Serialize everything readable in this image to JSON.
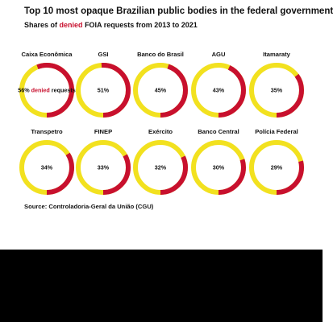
{
  "header": {
    "title": "Top 10 most opaque Brazilian public bodies in the federal government",
    "subtitle_pre": "Shares of",
    "subtitle_accent": "denied",
    "subtitle_post": "FOIA requests from 2013 to 2021"
  },
  "footer": {
    "source": "Source: Controladoria-Geral da União (CGU)"
  },
  "colors": {
    "denied": "#c8102e",
    "other": "#f2e11f"
  },
  "chart_data": {
    "type": "donut-grid",
    "annotation_first": {
      "mid": "denied",
      "post": "requests"
    },
    "items": [
      {
        "name": "Caixa Econômica",
        "value": 56,
        "label": "56%"
      },
      {
        "name": "GSI",
        "value": 51,
        "label": "51%"
      },
      {
        "name": "Banco do Brasil",
        "value": 45,
        "label": "45%"
      },
      {
        "name": "AGU",
        "value": 43,
        "label": "43%"
      },
      {
        "name": "Itamaraty",
        "value": 35,
        "label": "35%"
      },
      {
        "name": "Transpetro",
        "value": 34,
        "label": "34%"
      },
      {
        "name": "FINEP",
        "value": 33,
        "label": "33%"
      },
      {
        "name": "Exército",
        "value": 32,
        "label": "32%"
      },
      {
        "name": "Banco Central",
        "value": 30,
        "label": "30%"
      },
      {
        "name": "Polícia Federal",
        "value": 29,
        "label": "29%"
      }
    ]
  }
}
